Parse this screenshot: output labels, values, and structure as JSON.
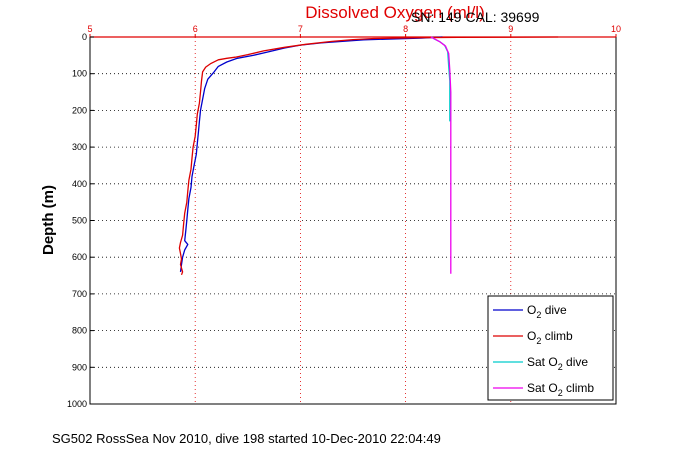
{
  "chart_data": {
    "type": "line",
    "title": "Dissolved Oxygen (ml/l)",
    "subtitle": "SN: 149  CAL: 39699",
    "xlabel": "",
    "ylabel": "Depth (m)",
    "footer": "SG502 RossSea Nov 2010, dive 198 started 10-Dec-2010 22:04:49",
    "xlim": [
      5,
      10
    ],
    "ylim": [
      0,
      1000
    ],
    "y_reversed": true,
    "x_axis_position": "top",
    "grid": true,
    "x_ticks": [
      "5",
      "6",
      "7",
      "8",
      "9",
      "10"
    ],
    "y_ticks": [
      "0",
      "100",
      "200",
      "300",
      "400",
      "500",
      "600",
      "700",
      "800",
      "900",
      "1000"
    ],
    "legend_position": "bottom-right",
    "legend": [
      {
        "label": "O",
        "sub": "2",
        "suffix": " dive",
        "color": "#0000cc"
      },
      {
        "label": "O",
        "sub": "2",
        "suffix": " climb",
        "color": "#dd0000"
      },
      {
        "label": "Sat O",
        "sub": "2",
        "suffix": " dive",
        "color": "#00cccc"
      },
      {
        "label": "Sat O",
        "sub": "2",
        "suffix": " climb",
        "color": "#ee00ee"
      }
    ],
    "series": [
      {
        "name": "O2 dive",
        "color": "#0000cc",
        "points": [
          [
            8.35,
            0
          ],
          [
            8.15,
            3
          ],
          [
            7.8,
            6
          ],
          [
            7.6,
            8
          ],
          [
            7.4,
            12
          ],
          [
            7.2,
            16
          ],
          [
            7.0,
            22
          ],
          [
            6.85,
            30
          ],
          [
            6.7,
            40
          ],
          [
            6.55,
            50
          ],
          [
            6.4,
            58
          ],
          [
            6.3,
            68
          ],
          [
            6.22,
            80
          ],
          [
            6.18,
            95
          ],
          [
            6.12,
            115
          ],
          [
            6.09,
            140
          ],
          [
            6.07,
            170
          ],
          [
            6.05,
            200
          ],
          [
            6.04,
            230
          ],
          [
            6.03,
            260
          ],
          [
            6.02,
            290
          ],
          [
            6.01,
            320
          ],
          [
            5.99,
            350
          ],
          [
            5.97,
            380
          ],
          [
            5.96,
            410
          ],
          [
            5.94,
            440
          ],
          [
            5.93,
            470
          ],
          [
            5.92,
            500
          ],
          [
            5.91,
            530
          ],
          [
            5.9,
            555
          ],
          [
            5.93,
            565
          ],
          [
            5.9,
            580
          ],
          [
            5.88,
            600
          ],
          [
            5.87,
            620
          ],
          [
            5.86,
            640
          ]
        ]
      },
      {
        "name": "O2 climb",
        "color": "#dd0000",
        "points": [
          [
            9.45,
            0
          ],
          [
            8.5,
            1
          ],
          [
            8.1,
            2
          ],
          [
            7.7,
            4
          ],
          [
            7.5,
            7
          ],
          [
            7.3,
            12
          ],
          [
            7.05,
            20
          ],
          [
            6.85,
            28
          ],
          [
            6.65,
            38
          ],
          [
            6.5,
            48
          ],
          [
            6.38,
            55
          ],
          [
            6.3,
            58
          ],
          [
            6.22,
            62
          ],
          [
            6.15,
            72
          ],
          [
            6.1,
            82
          ],
          [
            6.07,
            95
          ],
          [
            6.06,
            120
          ],
          [
            6.05,
            150
          ],
          [
            6.04,
            180
          ],
          [
            6.02,
            210
          ],
          [
            6.01,
            240
          ],
          [
            6.0,
            270
          ],
          [
            5.98,
            300
          ],
          [
            5.97,
            330
          ],
          [
            5.96,
            360
          ],
          [
            5.94,
            390
          ],
          [
            5.93,
            420
          ],
          [
            5.92,
            450
          ],
          [
            5.9,
            480
          ],
          [
            5.89,
            510
          ],
          [
            5.88,
            540
          ],
          [
            5.86,
            560
          ],
          [
            5.85,
            575
          ],
          [
            5.86,
            590
          ],
          [
            5.87,
            605
          ],
          [
            5.86,
            620
          ],
          [
            5.88,
            640
          ],
          [
            5.87,
            648
          ]
        ]
      },
      {
        "name": "Sat O2 dive",
        "color": "#00cccc",
        "points": [
          [
            8.25,
            0
          ],
          [
            8.27,
            5
          ],
          [
            8.32,
            12
          ],
          [
            8.37,
            22
          ],
          [
            8.4,
            40
          ],
          [
            8.41,
            80
          ],
          [
            8.42,
            120
          ],
          [
            8.42,
            160
          ],
          [
            8.42,
            200
          ],
          [
            8.42,
            230
          ]
        ]
      },
      {
        "name": "Sat O2 climb",
        "color": "#ee00ee",
        "points": [
          [
            8.24,
            0
          ],
          [
            8.28,
            6
          ],
          [
            8.33,
            14
          ],
          [
            8.38,
            25
          ],
          [
            8.41,
            45
          ],
          [
            8.42,
            90
          ],
          [
            8.43,
            150
          ],
          [
            8.43,
            250
          ],
          [
            8.43,
            350
          ],
          [
            8.43,
            450
          ],
          [
            8.43,
            550
          ],
          [
            8.43,
            645
          ]
        ]
      }
    ]
  }
}
